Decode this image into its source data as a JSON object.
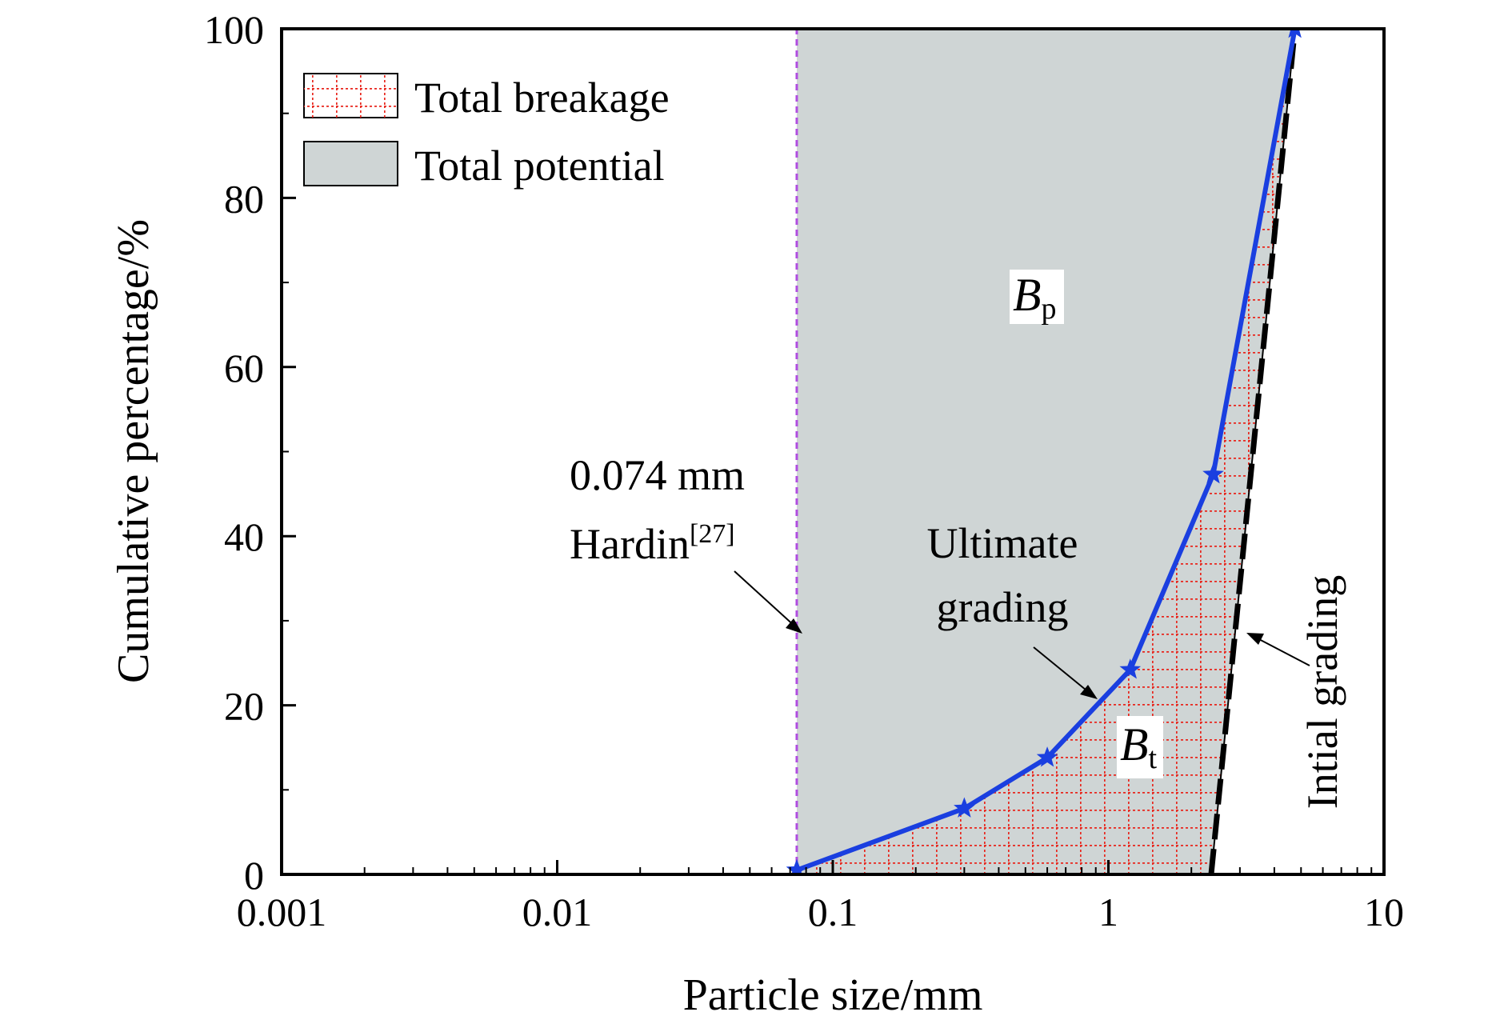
{
  "chart_data": {
    "type": "area",
    "xlabel": "Particle size/mm",
    "ylabel": "Cumulative percentage/%",
    "xscale": "log",
    "xlim": [
      0.001,
      10
    ],
    "ylim": [
      0,
      100
    ],
    "x_ticks": [
      "0.001",
      "0.01",
      "0.1",
      "1",
      "10"
    ],
    "y_ticks": [
      "0",
      "20",
      "40",
      "60",
      "80",
      "100"
    ],
    "legend": {
      "placement": "top-left",
      "entries": [
        {
          "label": "Total breakage",
          "style": "red dotted grid hatch"
        },
        {
          "label": "Total potential",
          "style": "grey fill"
        }
      ]
    },
    "series": [
      {
        "name": "Ultimate grading",
        "color": "#1a3fe0",
        "marker": "star",
        "x": [
          0.074,
          0.3,
          0.6,
          1.2,
          2.4,
          4.75
        ],
        "y": [
          0.5,
          7.8,
          13.8,
          24.2,
          47.3,
          100
        ]
      },
      {
        "name": "Intial grading",
        "color": "#000000",
        "style": "dashed",
        "x": [
          2.36,
          4.75
        ],
        "y": [
          0,
          100
        ]
      }
    ],
    "cutoff_line": {
      "x": 0.074,
      "color": "#b04de0",
      "style": "dashed"
    },
    "annotations": {
      "cutoff_line1": "0.074 mm",
      "cutoff_line2": "Hardin",
      "cutoff_ref": "[27]",
      "ultimate_line1": "Ultimate",
      "ultimate_line2": "grading",
      "initial": "Intial grading",
      "bp_main": "B",
      "bp_sub": "p",
      "bt_main": "B",
      "bt_sub": "t"
    },
    "colors": {
      "potential_fill": "#cfd5d5",
      "breakage_hatch": "#e8261d",
      "ultimate": "#1a3fe0",
      "cutoff": "#b04de0"
    }
  }
}
